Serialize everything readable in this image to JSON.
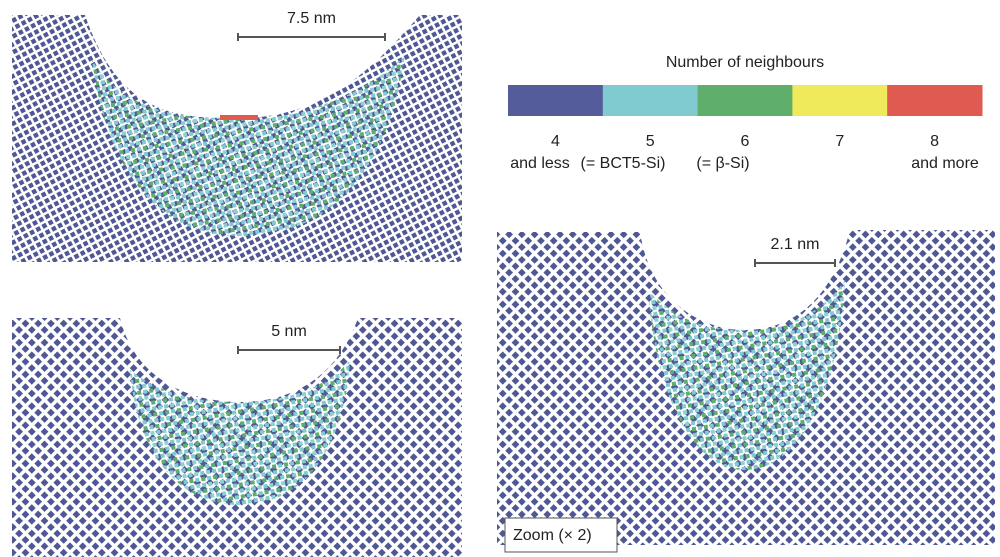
{
  "panels": [
    {
      "scale_label": "7.5 nm"
    },
    {
      "scale_label": "5 nm"
    },
    {
      "scale_label": "2.1 nm",
      "note": "Zoom (× 2)"
    }
  ],
  "legend": {
    "title": "Number of neighbours",
    "items": [
      {
        "number": "4",
        "sublabel": "and less",
        "color": "#555c9c"
      },
      {
        "number": "5",
        "sublabel": "(= BCT5-Si)",
        "color": "#7fcbcf"
      },
      {
        "number": "6",
        "sublabel": "(= β-Si)",
        "color": "#5fae6c"
      },
      {
        "number": "7",
        "sublabel": null,
        "color": "#eeea5c"
      },
      {
        "number": "8",
        "sublabel": "and more",
        "color": "#df5a50"
      }
    ]
  }
}
